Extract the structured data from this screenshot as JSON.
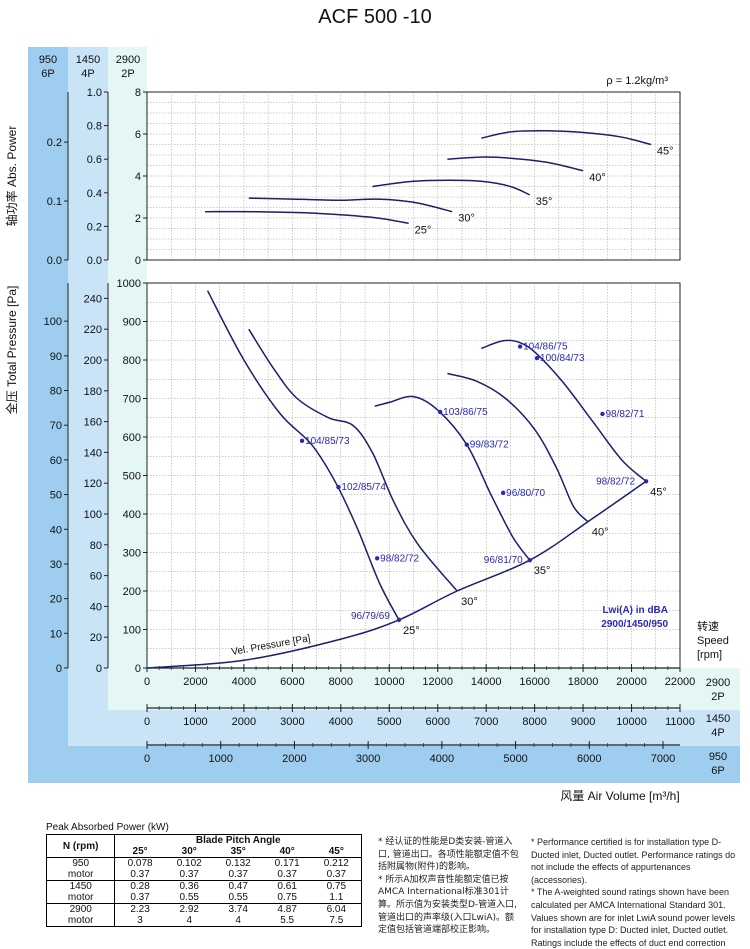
{
  "chart_data": {
    "type": "line",
    "title": "ACF 500 -10",
    "density_label": "ρ = 1.2kg/m³",
    "speeds_header": [
      {
        "rpm": "950",
        "pole": "6P"
      },
      {
        "rpm": "1450",
        "pole": "4P"
      },
      {
        "rpm": "2900",
        "pole": "2P"
      }
    ],
    "power_axis": {
      "label": "轴功率 Abs. Power",
      "range_2900": [
        0,
        8
      ],
      "ticks_2900": [
        "0",
        "2",
        "4",
        "6",
        "8"
      ],
      "ticks_1450": [
        "0.0",
        "0.2",
        "0.4",
        "0.6",
        "0.8",
        "1.0"
      ],
      "ticks_950": [
        "0.0",
        "0.1",
        "0.2"
      ]
    },
    "pressure_axis": {
      "label": "全压 Total Pressure [Pa]",
      "range_2900": [
        0,
        1000
      ],
      "ticks_2900": [
        "0",
        "100",
        "200",
        "300",
        "400",
        "500",
        "600",
        "700",
        "800",
        "900",
        "1000"
      ],
      "ticks_1450": [
        "0",
        "20",
        "40",
        "60",
        "80",
        "100",
        "120",
        "140",
        "160",
        "180",
        "200",
        "220",
        "240"
      ],
      "ticks_950": [
        "0",
        "10",
        "20",
        "30",
        "40",
        "50",
        "60",
        "70",
        "80",
        "90",
        "100"
      ]
    },
    "volume_axis": {
      "label": "风量 Air Volume [m³/h]",
      "speed_label": [
        "转速",
        "Speed",
        "[rpm]"
      ],
      "range_2900": [
        0,
        22000
      ],
      "ticks_2900": [
        "0",
        "2000",
        "4000",
        "6000",
        "8000",
        "10000",
        "12000",
        "14000",
        "16000",
        "18000",
        "20000",
        "22000"
      ],
      "ticks_1450": [
        "0",
        "1000",
        "2000",
        "3000",
        "4000",
        "5000",
        "6000",
        "7000",
        "8000",
        "9000",
        "10000",
        "11000"
      ],
      "ticks_950": [
        "0",
        "1000",
        "2000",
        "3000",
        "4000",
        "5000",
        "6000",
        "7000"
      ]
    },
    "pressure_curves": [
      {
        "name": "25°",
        "x": [
          2500,
          4000,
          5500,
          6800,
          7800,
          8700,
          9600,
          10400
        ],
        "y": [
          980,
          800,
          660,
          580,
          480,
          360,
          220,
          125
        ]
      },
      {
        "name": "30°",
        "x": [
          4200,
          5200,
          6200,
          7500,
          8500,
          9300,
          10200,
          11200,
          12800
        ],
        "y": [
          880,
          780,
          700,
          650,
          630,
          560,
          430,
          320,
          200
        ]
      },
      {
        "name": "35°",
        "x": [
          9400,
          10000,
          11000,
          12000,
          13200,
          14200,
          15100,
          15800
        ],
        "y": [
          680,
          690,
          705,
          670,
          580,
          450,
          340,
          280
        ]
      },
      {
        "name": "40°",
        "x": [
          12400,
          13600,
          14800,
          16000,
          16900,
          17600,
          18200
        ],
        "y": [
          765,
          745,
          700,
          620,
          520,
          420,
          380
        ]
      },
      {
        "name": "45°",
        "x": [
          13800,
          14700,
          15400,
          16100,
          17200,
          18400,
          19600,
          20600
        ],
        "y": [
          830,
          850,
          845,
          815,
          740,
          640,
          540,
          485
        ]
      }
    ],
    "velocity_pressure": {
      "label": "Vel. Pressure [Pa]",
      "x": [
        0,
        4000,
        8000,
        10400,
        12800,
        15800,
        18200,
        20600
      ],
      "y": [
        0,
        20,
        75,
        125,
        200,
        280,
        380,
        485
      ]
    },
    "power_curves": [
      {
        "name": "25°",
        "x": [
          2400,
          4500,
          6500,
          8000,
          9500,
          10800
        ],
        "y": [
          2.3,
          2.3,
          2.25,
          2.15,
          2.0,
          1.75
        ]
      },
      {
        "name": "30°",
        "x": [
          4200,
          6000,
          8000,
          9500,
          11000,
          12600
        ],
        "y": [
          2.95,
          2.9,
          2.85,
          2.9,
          2.75,
          2.3
        ]
      },
      {
        "name": "35°",
        "x": [
          9300,
          11000,
          12500,
          13800,
          15000,
          15800
        ],
        "y": [
          3.5,
          3.75,
          3.8,
          3.75,
          3.5,
          3.1
        ]
      },
      {
        "name": "40°",
        "x": [
          12400,
          13800,
          15000,
          16500,
          18000
        ],
        "y": [
          4.8,
          4.9,
          4.85,
          4.65,
          4.25
        ]
      },
      {
        "name": "45°",
        "x": [
          13800,
          15000,
          16500,
          18200,
          19600,
          20800
        ],
        "y": [
          5.8,
          6.1,
          6.15,
          6.05,
          5.85,
          5.5
        ]
      }
    ],
    "sound_labels": [
      {
        "text": "104/85/73",
        "x": 6400,
        "y": 590
      },
      {
        "text": "102/85/74",
        "x": 7900,
        "y": 470
      },
      {
        "text": "98/82/72",
        "x": 9500,
        "y": 285
      },
      {
        "text": "96/79/69",
        "x": 10400,
        "y": 125
      },
      {
        "text": "103/86/75",
        "x": 12100,
        "y": 665
      },
      {
        "text": "99/83/72",
        "x": 13200,
        "y": 580
      },
      {
        "text": "96/80/70",
        "x": 14700,
        "y": 455
      },
      {
        "text": "96/81/70",
        "x": 15800,
        "y": 280
      },
      {
        "text": "104/86/75",
        "x": 15400,
        "y": 835
      },
      {
        "text": "100/84/73",
        "x": 16100,
        "y": 805
      },
      {
        "text": "98/82/71",
        "x": 18800,
        "y": 660
      },
      {
        "text": "98/82/72",
        "x": 20600,
        "y": 485
      }
    ],
    "angle_label_text": "Lwi(A) in dBA",
    "speed_combo_text": "2900/1450/950"
  },
  "power_table": {
    "caption": "Peak Absorbed Power (kW)",
    "col_header": "N (rpm)",
    "group_header": "Blade Pitch Angle",
    "angles": [
      "25°",
      "30°",
      "35°",
      "40°",
      "45°"
    ],
    "rows": [
      {
        "label": "950",
        "values": [
          "0.078",
          "0.102",
          "0.132",
          "0.171",
          "0.212"
        ]
      },
      {
        "label": "motor",
        "values": [
          "0.37",
          "0.37",
          "0.37",
          "0.37",
          "0.37"
        ]
      },
      {
        "label": "1450",
        "values": [
          "0.28",
          "0.36",
          "0.47",
          "0.61",
          "0.75"
        ]
      },
      {
        "label": "motor",
        "values": [
          "0.37",
          "0.55",
          "0.55",
          "0.75",
          "1.1"
        ]
      },
      {
        "label": "2900",
        "values": [
          "2.23",
          "2.92",
          "3.74",
          "4.87",
          "6.04"
        ]
      },
      {
        "label": "motor",
        "values": [
          "3",
          "4",
          "4",
          "5.5",
          "7.5"
        ]
      }
    ]
  },
  "notes": {
    "cn": [
      "* 经认证的性能是D类安装-管道入口, 管道出口。各项性能额定值不包括附属物(附件)的影响。",
      "* 所示A加权声音性能额定值已按AMCA International标准301计算。所示值为安装类型D-管道入口, 管道出口的声率级(入口LwiA)。额定值包括管道端部校正影响。"
    ],
    "en": [
      "* Performance certified is for installation type D-Ducted inlet, Ducted outlet. Performance ratings do not include the effects of appurtenances (accessories).",
      "* The A-weighted sound ratings shown have been calculated per AMCA International Standard 301. Values shown are for inlet LwiA sound power levels for installation type D: Ducted inlet, Ducted outlet. Ratings include the effects of duct end correction"
    ]
  },
  "colors": {
    "curve": "#1a1f6e",
    "sound_label": "#2a2ab0",
    "band_950": "#9fcdf0",
    "band_1450": "#c9e3f7",
    "band_2900": "#e4f7f5",
    "grid": "#9a9a9a"
  }
}
